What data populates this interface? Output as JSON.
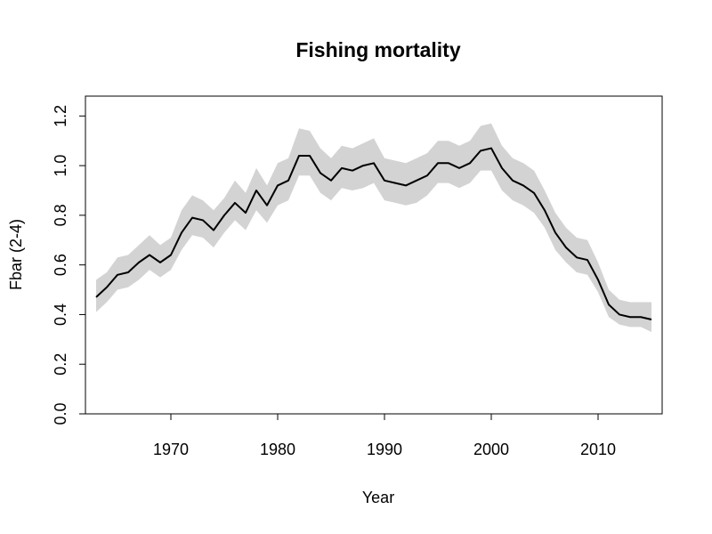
{
  "chart_data": {
    "type": "line",
    "title": "Fishing mortality",
    "xlabel": "Year",
    "ylabel": "Fbar (2-4)",
    "xlim": [
      1962,
      2016
    ],
    "ylim": [
      0,
      1.28
    ],
    "x_ticks": [
      1970,
      1980,
      1990,
      2000,
      2010
    ],
    "y_ticks": [
      0.0,
      0.2,
      0.4,
      0.6,
      0.8,
      1.0,
      1.2
    ],
    "x_tick_labels": [
      "1970",
      "1980",
      "1990",
      "2000",
      "2010"
    ],
    "y_tick_labels": [
      "0.0",
      "0.2",
      "0.4",
      "0.6",
      "0.8",
      "1.0",
      "1.2"
    ],
    "grid": false,
    "legend": "none",
    "colors": {
      "line": "#000000",
      "band": "#d3d3d3",
      "frame": "#000000"
    },
    "series": [
      {
        "x": [
          1963,
          1964,
          1965,
          1966,
          1967,
          1968,
          1969,
          1970,
          1971,
          1972,
          1973,
          1974,
          1975,
          1976,
          1977,
          1978,
          1979,
          1980,
          1981,
          1982,
          1983,
          1984,
          1985,
          1986,
          1987,
          1988,
          1989,
          1990,
          1991,
          1992,
          1993,
          1994,
          1995,
          1996,
          1997,
          1998,
          1999,
          2000,
          2001,
          2002,
          2003,
          2004,
          2005,
          2006,
          2007,
          2008,
          2009,
          2010,
          2011,
          2012,
          2013,
          2014,
          2015
        ],
        "y": [
          0.47,
          0.51,
          0.56,
          0.57,
          0.61,
          0.64,
          0.61,
          0.64,
          0.73,
          0.79,
          0.78,
          0.74,
          0.8,
          0.85,
          0.81,
          0.9,
          0.84,
          0.92,
          0.94,
          1.04,
          1.04,
          0.97,
          0.94,
          0.99,
          0.98,
          1.0,
          1.01,
          0.94,
          0.93,
          0.92,
          0.94,
          0.96,
          1.01,
          1.01,
          0.99,
          1.01,
          1.06,
          1.07,
          0.99,
          0.94,
          0.92,
          0.89,
          0.82,
          0.73,
          0.67,
          0.63,
          0.62,
          0.54,
          0.44,
          0.4,
          0.39,
          0.39,
          0.38
        ],
        "lower": [
          0.41,
          0.45,
          0.5,
          0.51,
          0.54,
          0.58,
          0.55,
          0.58,
          0.66,
          0.72,
          0.71,
          0.67,
          0.73,
          0.78,
          0.74,
          0.82,
          0.77,
          0.84,
          0.86,
          0.96,
          0.96,
          0.89,
          0.86,
          0.91,
          0.9,
          0.91,
          0.93,
          0.86,
          0.85,
          0.84,
          0.85,
          0.88,
          0.93,
          0.93,
          0.91,
          0.93,
          0.98,
          0.98,
          0.9,
          0.86,
          0.84,
          0.81,
          0.75,
          0.66,
          0.61,
          0.57,
          0.56,
          0.49,
          0.39,
          0.36,
          0.35,
          0.35,
          0.33
        ],
        "upper": [
          0.54,
          0.57,
          0.63,
          0.64,
          0.68,
          0.72,
          0.68,
          0.71,
          0.82,
          0.88,
          0.86,
          0.82,
          0.87,
          0.94,
          0.89,
          0.99,
          0.92,
          1.01,
          1.03,
          1.15,
          1.14,
          1.07,
          1.03,
          1.08,
          1.07,
          1.09,
          1.11,
          1.03,
          1.02,
          1.01,
          1.03,
          1.05,
          1.1,
          1.1,
          1.08,
          1.1,
          1.16,
          1.17,
          1.08,
          1.03,
          1.01,
          0.98,
          0.9,
          0.81,
          0.75,
          0.71,
          0.7,
          0.61,
          0.5,
          0.46,
          0.45,
          0.45,
          0.45
        ]
      }
    ]
  }
}
